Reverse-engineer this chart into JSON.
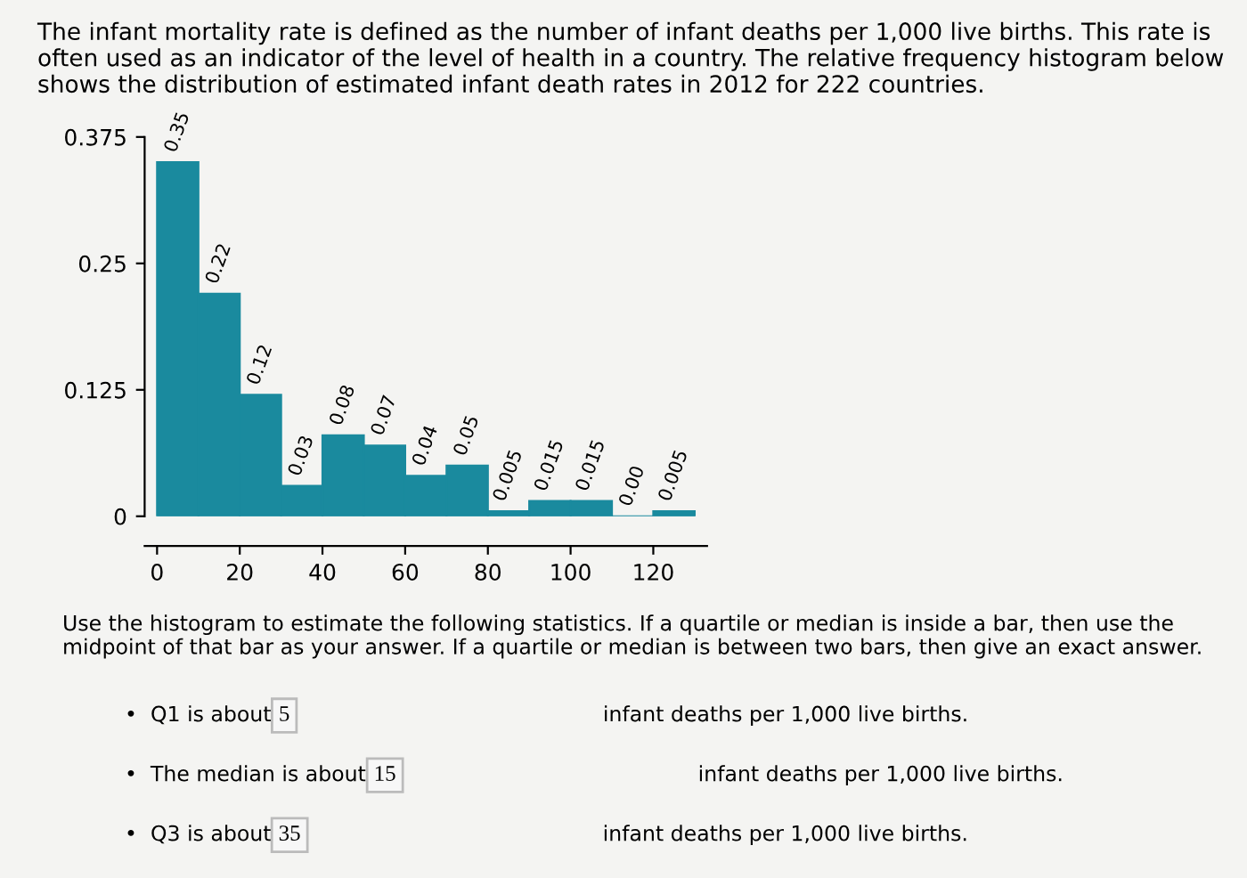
{
  "chart_data": {
    "type": "histogram",
    "title": "The infant mortality rate is defined as the number of infant deaths per 1,000 live births. This rate is often used as an indicator of the level of health in a country. The relative frequency histogram below shows the distribution of estimated infant death rates in 2012 for 222 countries.",
    "bins": [
      0,
      10,
      20,
      30,
      40,
      50,
      60,
      70,
      80,
      90,
      100,
      110,
      120,
      130
    ],
    "values": [
      0.35,
      0.22,
      0.12,
      0.03,
      0.08,
      0.07,
      0.04,
      0.05,
      0.005,
      0.015,
      0.015,
      0.0,
      0.005
    ],
    "value_labels": [
      "0.35",
      "0.22",
      "0.12",
      "0.03",
      "0.08",
      "0.07",
      "0.04",
      "0.05",
      "0.005",
      "0.015",
      "0.015",
      "0.00",
      "0.005"
    ],
    "color": "#1a8a9e",
    "xlim": [
      -3,
      133
    ],
    "xticks": [
      0,
      20,
      40,
      60,
      80,
      100,
      120
    ],
    "ylim": [
      0,
      0.375
    ],
    "yticks": [
      0,
      0.125,
      0.25,
      0.375
    ],
    "grid": false,
    "annotations": [
      "Use the histogram to estimate the following statistics. If a quartile or median is inside a bar, then use the midpoint of that bar as your answer. If a quartile or median is between two bars, then give an exact answer.",
      "•  Q1 is about",
      "5",
      "infant deaths per 1,000 live births.",
      "•  The median is about",
      "15",
      "infant deaths per 1,000 live births.",
      "•  Q3 is about",
      "35",
      "infant deaths per 1,000 live births."
    ]
  }
}
